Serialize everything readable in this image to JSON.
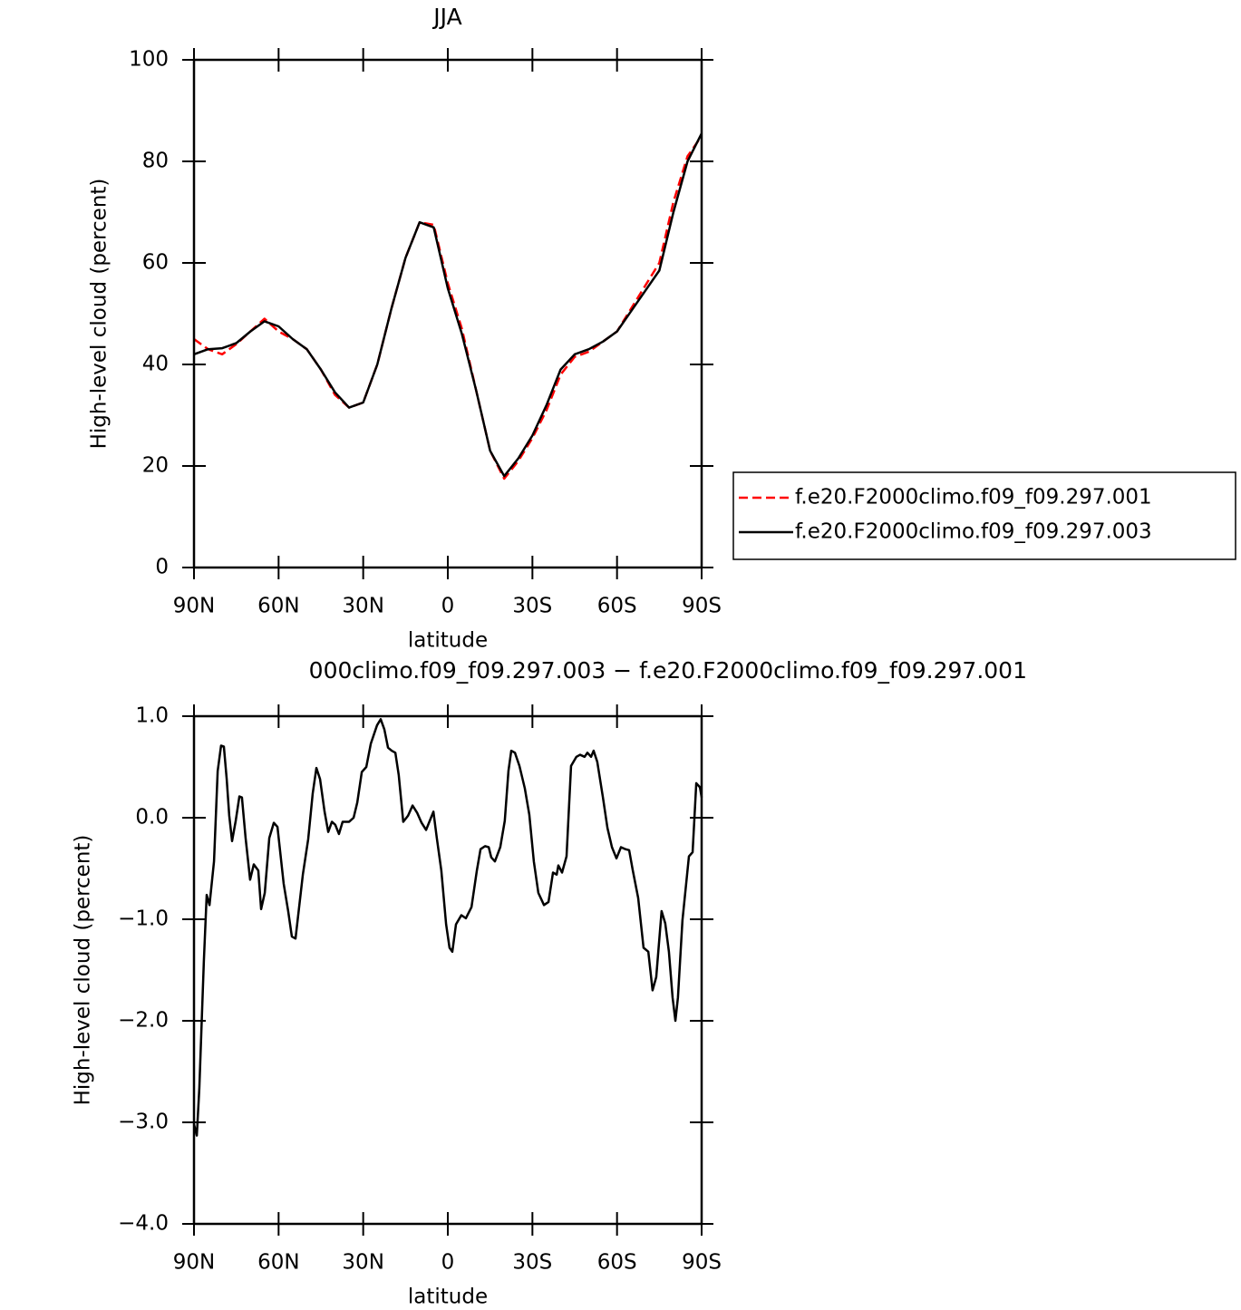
{
  "chart_data": [
    {
      "type": "line",
      "title": "JJA",
      "xlabel": "latitude",
      "ylabel": "High-level cloud (percent)",
      "x": [
        90,
        85,
        80,
        75,
        70,
        65,
        60,
        55,
        50,
        45,
        40,
        35,
        30,
        25,
        20,
        15,
        10,
        5,
        0,
        -5,
        -10,
        -15,
        -20,
        -25,
        -30,
        -35,
        -40,
        -45,
        -50,
        -55,
        -60,
        -65,
        -70,
        -75,
        -80,
        -85,
        -90
      ],
      "series": [
        {
          "name": "f.e20.F2000climo.f09_f09.297.001",
          "color": "#ff0000",
          "dashed": true,
          "values": [
            45,
            43,
            42,
            44,
            46.5,
            49,
            46.5,
            45,
            43,
            39,
            34,
            31.5,
            32.5,
            40,
            51,
            61,
            68,
            67.5,
            56,
            47,
            35,
            23,
            17.5,
            21,
            25.5,
            31,
            38,
            41.5,
            42.5,
            44.5,
            46.5,
            51,
            55.5,
            60,
            72,
            81,
            85
          ]
        },
        {
          "name": "f.e20.F2000climo.f09_f09.297.003",
          "color": "#000000",
          "dashed": false,
          "values": [
            42,
            43,
            43.2,
            44.2,
            46.5,
            48.5,
            47.5,
            45,
            43,
            39,
            34.5,
            31.5,
            32.5,
            40,
            51,
            61,
            68,
            67,
            55,
            46,
            35,
            23,
            18,
            21.5,
            26,
            32,
            39,
            42,
            43,
            44.5,
            46.5,
            50.5,
            54.5,
            58.5,
            70,
            80,
            85.5
          ]
        }
      ],
      "xlim": [
        90,
        -90
      ],
      "xticks": [
        {
          "value": 90,
          "label": "90N"
        },
        {
          "value": 60,
          "label": "60N"
        },
        {
          "value": 30,
          "label": "30N"
        },
        0,
        {
          "value": -30,
          "label": "30S"
        },
        {
          "value": -60,
          "label": "60S"
        },
        {
          "value": -90,
          "label": "90S"
        }
      ],
      "ylim": [
        0,
        100
      ],
      "yticks": [
        0,
        20,
        40,
        60,
        80,
        100
      ],
      "legend": "right"
    },
    {
      "type": "line",
      "title": "000climo.f09_f09.297.003 − f.e20.F2000climo.f09_f09.297.001",
      "xlabel": "latitude",
      "ylabel": "High-level cloud (percent)",
      "x": [
        90,
        89.0,
        88.1,
        86.5,
        85.5,
        84.5,
        82.9,
        81.6,
        80.4,
        79.4,
        78.4,
        77.5,
        76.5,
        75.2,
        73.9,
        73.0,
        71.7,
        70.1,
        68.8,
        67.2,
        66.2,
        64.9,
        63.3,
        61.7,
        60.4,
        58.2,
        56.6,
        55.3,
        54.0,
        51.4,
        49.5,
        47.9,
        46.6,
        45.3,
        43.7,
        42.4,
        41.1,
        39.9,
        38.6,
        37.3,
        35.0,
        33.4,
        32.1,
        30.5,
        28.9,
        27.3,
        25.1,
        23.8,
        22.5,
        21.2,
        19.9,
        18.6,
        17.4,
        15.8,
        14.1,
        12.5,
        10.9,
        9.3,
        7.7,
        6.4,
        5.1,
        3.9,
        2.3,
        0.6,
        -0.6,
        -1.6,
        -2.9,
        -4.8,
        -6.4,
        -8.4,
        -10.3,
        -11.6,
        -13.2,
        -14.5,
        -15.4,
        -16.7,
        -18.6,
        -20.2,
        -21.5,
        -22.5,
        -23.8,
        -25.4,
        -27.3,
        -28.9,
        -30.5,
        -32.1,
        -34.1,
        -35.7,
        -37.3,
        -38.6,
        -39.2,
        -40.5,
        -42.1,
        -43.7,
        -45.6,
        -46.9,
        -48.5,
        -49.5,
        -50.8,
        -51.7,
        -53.0,
        -55.0,
        -56.6,
        -58.2,
        -59.8,
        -61.4,
        -63.0,
        -64.3,
        -65.6,
        -67.5,
        -69.4,
        -71.1,
        -72.6,
        -73.9,
        -75.8,
        -77.1,
        -78.4,
        -79.7,
        -80.7,
        -81.6,
        -83.2,
        -85.5,
        -86.8,
        -88.1,
        -89.4,
        -90.0
      ],
      "series": [
        {
          "color": "#000000",
          "dashed": false,
          "values": [
            -3.02,
            -3.13,
            -2.66,
            -1.41,
            -0.76,
            -0.86,
            -0.43,
            0.46,
            0.71,
            0.7,
            0.38,
            0.02,
            -0.23,
            -0.03,
            0.21,
            0.2,
            -0.2,
            -0.61,
            -0.46,
            -0.52,
            -0.9,
            -0.74,
            -0.2,
            -0.05,
            -0.09,
            -0.65,
            -0.92,
            -1.17,
            -1.19,
            -0.56,
            -0.21,
            0.24,
            0.49,
            0.38,
            0.06,
            -0.14,
            -0.04,
            -0.07,
            -0.16,
            -0.04,
            -0.04,
            0,
            0.15,
            0.45,
            0.5,
            0.73,
            0.91,
            0.97,
            0.87,
            0.69,
            0.66,
            0.64,
            0.42,
            -0.04,
            0.02,
            0.12,
            0.05,
            -0.05,
            -0.12,
            -0.03,
            0.06,
            -0.2,
            -0.52,
            -1.05,
            -1.28,
            -1.32,
            -1.05,
            -0.96,
            -0.99,
            -0.88,
            -0.52,
            -0.31,
            -0.28,
            -0.29,
            -0.39,
            -0.43,
            -0.29,
            -0.03,
            0.46,
            0.66,
            0.64,
            0.51,
            0.29,
            0.03,
            -0.43,
            -0.74,
            -0.86,
            -0.83,
            -0.54,
            -0.56,
            -0.47,
            -0.54,
            -0.38,
            0.51,
            0.6,
            0.62,
            0.6,
            0.64,
            0.6,
            0.66,
            0.55,
            0.2,
            -0.1,
            -0.29,
            -0.4,
            -0.29,
            -0.31,
            -0.32,
            -0.52,
            -0.79,
            -1.28,
            -1.32,
            -1.7,
            -1.57,
            -0.92,
            -1.04,
            -1.32,
            -1.77,
            -2.0,
            -1.77,
            -1.01,
            -0.38,
            -0.34,
            0.34,
            0.3,
            0.2
          ]
        }
      ],
      "xlim": [
        90,
        -90
      ],
      "xticks": [
        {
          "value": 90,
          "label": "90N"
        },
        {
          "value": 60,
          "label": "60N"
        },
        {
          "value": 30,
          "label": "30N"
        },
        0,
        {
          "value": -30,
          "label": "30S"
        },
        {
          "value": -60,
          "label": "60S"
        },
        {
          "value": -90,
          "label": "90S"
        }
      ],
      "ylim": [
        -4,
        1
      ],
      "yticks": [
        {
          "value": -4,
          "label": "−4.0"
        },
        {
          "value": -3,
          "label": "−3.0"
        },
        {
          "value": -2,
          "label": "−2.0"
        },
        {
          "value": -1,
          "label": "−1.0"
        },
        {
          "value": 0,
          "label": "0.0"
        },
        {
          "value": 1,
          "label": "1.0"
        }
      ]
    }
  ]
}
